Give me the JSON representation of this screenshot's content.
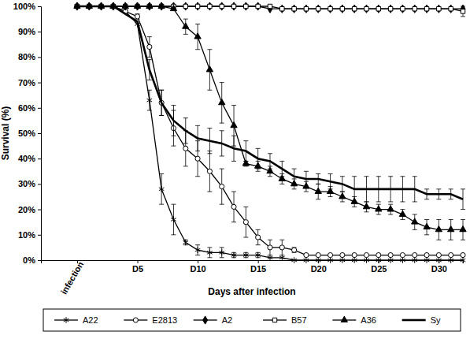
{
  "chart_data": {
    "type": "line",
    "x_label": "Days after infection",
    "y_label": "Survival (%)",
    "x": [
      0,
      1,
      2,
      3,
      4,
      5,
      6,
      7,
      8,
      9,
      10,
      11,
      12,
      13,
      14,
      15,
      16,
      17,
      18,
      19,
      20,
      21,
      22,
      23,
      24,
      25,
      26,
      27,
      28,
      29,
      30,
      31,
      32
    ],
    "xlim": [
      -3,
      32
    ],
    "xticks": [
      {
        "value": 0,
        "label": "infection"
      },
      {
        "value": 5,
        "label": "D5"
      },
      {
        "value": 10,
        "label": "D10"
      },
      {
        "value": 15,
        "label": "D15"
      },
      {
        "value": 20,
        "label": "D20"
      },
      {
        "value": 25,
        "label": "D25"
      },
      {
        "value": 30,
        "label": "D30"
      }
    ],
    "ylim": [
      0,
      100
    ],
    "yticks": [
      {
        "value": 0,
        "label": "0%"
      },
      {
        "value": 10,
        "label": "10%"
      },
      {
        "value": 20,
        "label": "20%"
      },
      {
        "value": 30,
        "label": "30%"
      },
      {
        "value": 40,
        "label": "40%"
      },
      {
        "value": 50,
        "label": "50%"
      },
      {
        "value": 60,
        "label": "60%"
      },
      {
        "value": 70,
        "label": "70%"
      },
      {
        "value": 80,
        "label": "80%"
      },
      {
        "value": 90,
        "label": "90%"
      },
      {
        "value": 100,
        "label": "100%"
      }
    ],
    "grid": false,
    "legend": "bottom",
    "series": [
      {
        "name": "A22",
        "color": "#000000",
        "marker": "asterisk",
        "line_style": "solid",
        "values": [
          100,
          100,
          100,
          100,
          98,
          93,
          63,
          28,
          16,
          7,
          4,
          3,
          3,
          2,
          2,
          2,
          1,
          1,
          0,
          0,
          0,
          0,
          0,
          0,
          0,
          0,
          0,
          0,
          0,
          0,
          0,
          0,
          0
        ],
        "errors": [
          null,
          null,
          null,
          null,
          null,
          null,
          4,
          6,
          6,
          1,
          2,
          2,
          2,
          1,
          1,
          1,
          null,
          null,
          null,
          null,
          null,
          null,
          null,
          null,
          null,
          null,
          null,
          null,
          null,
          null,
          null,
          null,
          null
        ]
      },
      {
        "name": "E2813",
        "color": "#000000",
        "marker": "circle-open",
        "line_style": "solid",
        "values": [
          100,
          100,
          100,
          100,
          98,
          96,
          84,
          62,
          52,
          44,
          40,
          35,
          29,
          21,
          15,
          9,
          5,
          5,
          4,
          2,
          2,
          2,
          2,
          2,
          2,
          2,
          2,
          2,
          2,
          2,
          2,
          2,
          2
        ],
        "errors": [
          null,
          null,
          null,
          null,
          null,
          1,
          4,
          5,
          7,
          7,
          7,
          8,
          7,
          6,
          6,
          3,
          3,
          3,
          1,
          null,
          null,
          null,
          null,
          null,
          null,
          null,
          null,
          null,
          null,
          null,
          null,
          null,
          null
        ]
      },
      {
        "name": "A2",
        "color": "#000000",
        "marker": "diamond",
        "line_style": "solid",
        "values": [
          100,
          100,
          100,
          100,
          100,
          100,
          100,
          100,
          100,
          100,
          100,
          100,
          100,
          100,
          100,
          100,
          99,
          99,
          99,
          99,
          99,
          99,
          99,
          99,
          99,
          99,
          99,
          99,
          99,
          99,
          99,
          99,
          99
        ]
      },
      {
        "name": "B57",
        "color": "#000000",
        "marker": "square-open",
        "line_style": "solid",
        "values": [
          100,
          100,
          100,
          100,
          100,
          100,
          100,
          100,
          100,
          100,
          100,
          100,
          100,
          100,
          100,
          100,
          100,
          99,
          99,
          99,
          99,
          99,
          99,
          99,
          99,
          99,
          99,
          99,
          99,
          99,
          99,
          99,
          98
        ],
        "errors": [
          null,
          null,
          null,
          null,
          null,
          null,
          null,
          null,
          null,
          null,
          null,
          null,
          null,
          null,
          null,
          null,
          null,
          null,
          null,
          null,
          null,
          null,
          null,
          null,
          null,
          null,
          null,
          null,
          null,
          null,
          null,
          null,
          2
        ]
      },
      {
        "name": "A36",
        "color": "#000000",
        "marker": "triangle",
        "line_style": "solid",
        "values": [
          100,
          100,
          100,
          100,
          100,
          100,
          100,
          100,
          99,
          92,
          88,
          75,
          62,
          53,
          38,
          37,
          35,
          32,
          30,
          29,
          27,
          27,
          25,
          23,
          21,
          20,
          20,
          18,
          15,
          13,
          12,
          12,
          12
        ],
        "errors": [
          null,
          null,
          null,
          null,
          null,
          null,
          null,
          null,
          null,
          3,
          5,
          8,
          8,
          8,
          1,
          2,
          2,
          2,
          2,
          2,
          3,
          2,
          2,
          2,
          2,
          2,
          2,
          2,
          3,
          3,
          4,
          4,
          4
        ]
      },
      {
        "name": "Sy",
        "color": "#000000",
        "marker": "none",
        "line_style": "solid",
        "values": [
          100,
          100,
          100,
          100,
          97,
          94,
          75,
          62,
          55,
          51,
          48,
          47,
          46,
          44,
          43,
          40,
          39,
          36,
          33,
          32,
          32,
          31,
          30,
          28,
          28,
          28,
          28,
          28,
          28,
          26,
          26,
          26,
          24
        ],
        "errors": [
          null,
          null,
          null,
          null,
          null,
          null,
          4,
          5,
          6,
          5,
          5,
          5,
          5,
          5,
          4,
          4,
          3,
          3,
          3,
          3,
          2,
          3,
          3,
          5,
          5,
          5,
          5,
          5,
          5,
          2,
          2,
          2,
          4
        ]
      }
    ]
  }
}
